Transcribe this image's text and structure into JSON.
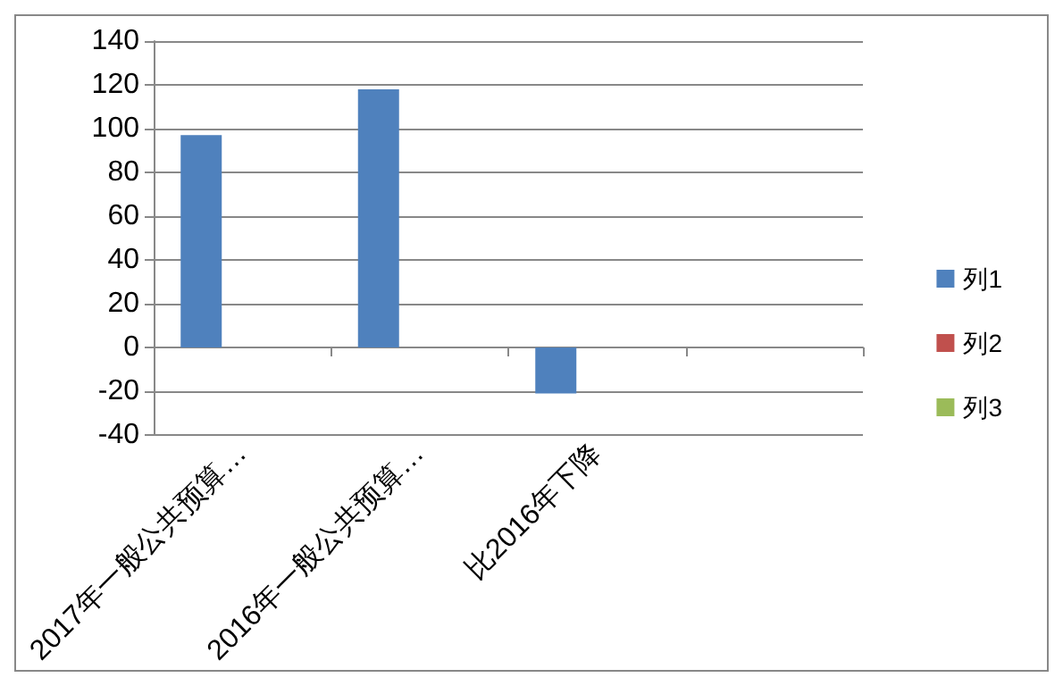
{
  "chart_data": {
    "type": "bar",
    "categories": [
      "2017年一般公共预算…",
      "2016年一般公共预算…",
      "比2016年下降",
      null
    ],
    "series": [
      {
        "name": "列1",
        "color": "#4f81bd",
        "values": [
          97,
          118,
          -21,
          null
        ]
      },
      {
        "name": "列2",
        "color": "#c0504d",
        "values": [
          null,
          null,
          null,
          null
        ]
      },
      {
        "name": "列3",
        "color": "#9bbb59",
        "values": [
          null,
          null,
          null,
          null
        ]
      }
    ],
    "ylim": [
      -40,
      140
    ],
    "yticks": [
      -40,
      -20,
      0,
      20,
      40,
      60,
      80,
      100,
      120,
      140
    ],
    "grid": "y",
    "legend": "right"
  }
}
